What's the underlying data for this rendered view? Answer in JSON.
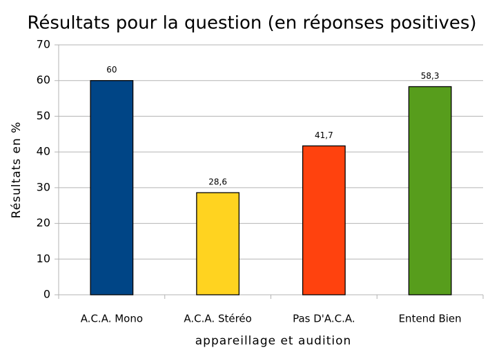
{
  "chart_data": {
    "type": "bar",
    "title": "Résultats pour la question (en réponses positives)",
    "xlabel": "appareillage et audition",
    "ylabel": "Résultats en %",
    "categories": [
      "A.C.A. Mono",
      "A.C.A. Stéréo",
      "Pas D'A.C.A.",
      "Entend Bien"
    ],
    "values": [
      60,
      28.6,
      41.7,
      58.3
    ],
    "value_labels": [
      "60",
      "28,6",
      "41,7",
      "58,3"
    ],
    "colors": [
      "#004586",
      "#ffd320",
      "#ff420e",
      "#579d1c"
    ],
    "ylim": [
      0,
      70
    ],
    "yticks": [
      0,
      10,
      20,
      30,
      40,
      50,
      60,
      70
    ],
    "grid": true
  }
}
